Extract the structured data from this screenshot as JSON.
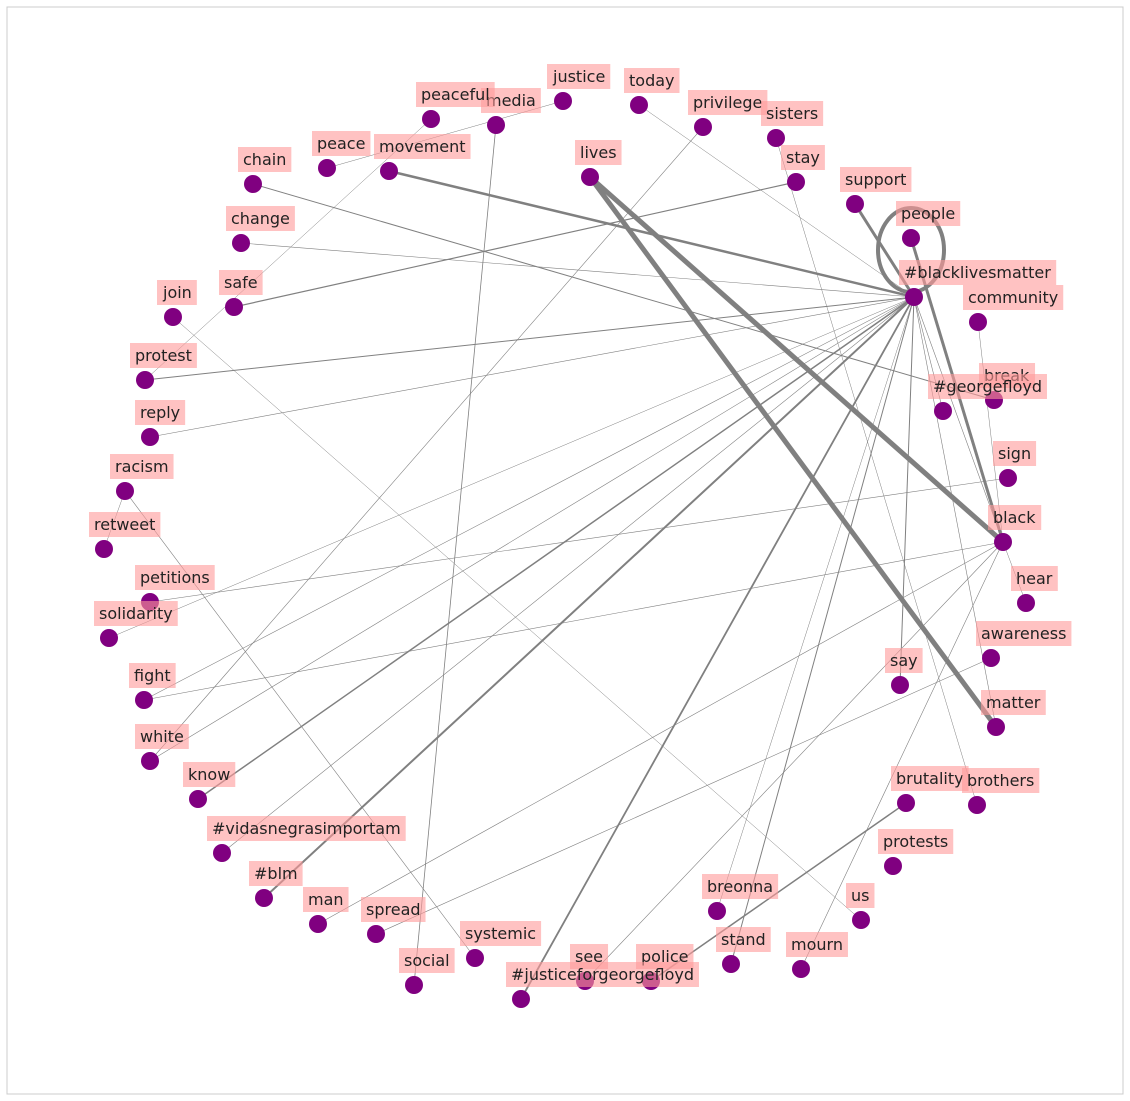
{
  "graph": {
    "node_color": "#800080",
    "label_bg_color": "#ff9a9a",
    "edge_color": "#808080",
    "frame_color": "#cccccc",
    "nodes": [
      {
        "id": "justice",
        "label": "justice"
      },
      {
        "id": "today",
        "label": "today"
      },
      {
        "id": "media",
        "label": "media"
      },
      {
        "id": "peaceful",
        "label": "peaceful"
      },
      {
        "id": "privilege",
        "label": "privilege"
      },
      {
        "id": "sisters",
        "label": "sisters"
      },
      {
        "id": "peace",
        "label": "peace"
      },
      {
        "id": "movement",
        "label": "movement"
      },
      {
        "id": "lives",
        "label": "lives"
      },
      {
        "id": "stay",
        "label": "stay"
      },
      {
        "id": "chain",
        "label": "chain"
      },
      {
        "id": "support",
        "label": "support"
      },
      {
        "id": "people",
        "label": "people"
      },
      {
        "id": "change",
        "label": "change"
      },
      {
        "id": "blacklivesmatter",
        "label": "#blacklivesmatter"
      },
      {
        "id": "safe",
        "label": "safe"
      },
      {
        "id": "join",
        "label": "join"
      },
      {
        "id": "community",
        "label": "community"
      },
      {
        "id": "protest",
        "label": "protest"
      },
      {
        "id": "break",
        "label": "break"
      },
      {
        "id": "georgefloyd",
        "label": "#georgefloyd"
      },
      {
        "id": "reply",
        "label": "reply"
      },
      {
        "id": "sign",
        "label": "sign"
      },
      {
        "id": "racism",
        "label": "racism"
      },
      {
        "id": "black",
        "label": "black"
      },
      {
        "id": "retweet",
        "label": "retweet"
      },
      {
        "id": "hear",
        "label": "hear"
      },
      {
        "id": "petitions",
        "label": "petitions"
      },
      {
        "id": "solidarity",
        "label": "solidarity"
      },
      {
        "id": "awareness",
        "label": "awareness"
      },
      {
        "id": "say",
        "label": "say"
      },
      {
        "id": "fight",
        "label": "fight"
      },
      {
        "id": "matter",
        "label": "matter"
      },
      {
        "id": "white",
        "label": "white"
      },
      {
        "id": "brutality",
        "label": "brutality"
      },
      {
        "id": "brothers",
        "label": "brothers"
      },
      {
        "id": "know",
        "label": "know"
      },
      {
        "id": "vidasnegrasimportam",
        "label": "#vidasnegrasimportam"
      },
      {
        "id": "protests",
        "label": "protests"
      },
      {
        "id": "blm",
        "label": "#blm"
      },
      {
        "id": "breonna",
        "label": "breonna"
      },
      {
        "id": "us",
        "label": "us"
      },
      {
        "id": "man",
        "label": "man"
      },
      {
        "id": "spread",
        "label": "spread"
      },
      {
        "id": "stand",
        "label": "stand"
      },
      {
        "id": "mourn",
        "label": "mourn"
      },
      {
        "id": "systemic",
        "label": "systemic"
      },
      {
        "id": "police",
        "label": "police"
      },
      {
        "id": "social",
        "label": "social"
      },
      {
        "id": "see",
        "label": "see"
      },
      {
        "id": "justiceforgeorgefloyd",
        "label": "#justiceforgeorgefloyd"
      }
    ],
    "edges": [
      {
        "source": "lives",
        "target": "matter",
        "weight": 5
      },
      {
        "source": "lives",
        "target": "black",
        "weight": 5
      },
      {
        "source": "people",
        "target": "people",
        "weight": 4
      },
      {
        "source": "people",
        "target": "black",
        "weight": 3
      },
      {
        "source": "support",
        "target": "blacklivesmatter",
        "weight": 3
      },
      {
        "source": "movement",
        "target": "blacklivesmatter",
        "weight": 2.5
      },
      {
        "source": "blm",
        "target": "blacklivesmatter",
        "weight": 2
      },
      {
        "source": "justiceforgeorgefloyd",
        "target": "blacklivesmatter",
        "weight": 1.8
      },
      {
        "source": "know",
        "target": "blacklivesmatter",
        "weight": 1.5
      },
      {
        "source": "police",
        "target": "brutality",
        "weight": 1.5
      },
      {
        "source": "safe",
        "target": "stay",
        "weight": 1.2
      },
      {
        "source": "protest",
        "target": "blacklivesmatter",
        "weight": 1
      },
      {
        "source": "stand",
        "target": "blacklivesmatter",
        "weight": 1
      },
      {
        "source": "social",
        "target": "media",
        "weight": 0.8
      },
      {
        "source": "chain",
        "target": "break",
        "weight": 1
      },
      {
        "source": "say",
        "target": "blacklivesmatter",
        "weight": 1
      },
      {
        "source": "white",
        "target": "privilege",
        "weight": 0.6
      },
      {
        "source": "white",
        "target": "blacklivesmatter",
        "weight": 0.6
      },
      {
        "source": "change",
        "target": "blacklivesmatter",
        "weight": 0.6
      },
      {
        "source": "fight",
        "target": "blacklivesmatter",
        "weight": 0.6
      },
      {
        "source": "reply",
        "target": "blacklivesmatter",
        "weight": 0.6
      },
      {
        "source": "petitions",
        "target": "sign",
        "weight": 0.6
      },
      {
        "source": "fight",
        "target": "black",
        "weight": 0.6
      },
      {
        "source": "vidasnegrasimportam",
        "target": "blacklivesmatter",
        "weight": 0.6
      },
      {
        "source": "man",
        "target": "black",
        "weight": 0.6
      },
      {
        "source": "spread",
        "target": "awareness",
        "weight": 0.6
      },
      {
        "source": "see",
        "target": "black",
        "weight": 0.6
      },
      {
        "source": "mourn",
        "target": "black",
        "weight": 0.6
      },
      {
        "source": "join",
        "target": "us",
        "weight": 0.5
      },
      {
        "source": "racism",
        "target": "systemic",
        "weight": 0.6
      },
      {
        "source": "peaceful",
        "target": "protest",
        "weight": 0.5
      },
      {
        "source": "peace",
        "target": "justice",
        "weight": 0.5
      },
      {
        "source": "today",
        "target": "blacklivesmatter",
        "weight": 0.5
      },
      {
        "source": "sisters",
        "target": "brothers",
        "weight": 0.5
      },
      {
        "source": "breonna",
        "target": "blacklivesmatter",
        "weight": 0.5
      },
      {
        "source": "community",
        "target": "black",
        "weight": 0.5
      },
      {
        "source": "black",
        "target": "blacklivesmatter",
        "weight": 0.6
      },
      {
        "source": "matter",
        "target": "blacklivesmatter",
        "weight": 0.6
      },
      {
        "source": "solidarity",
        "target": "blacklivesmatter",
        "weight": 0.5
      },
      {
        "source": "racism",
        "target": "retweet",
        "weight": 0.5
      },
      {
        "source": "black",
        "target": "hear",
        "weight": 0.5
      },
      {
        "source": "georgefloyd",
        "target": "blacklivesmatter",
        "weight": 0.6
      }
    ]
  }
}
